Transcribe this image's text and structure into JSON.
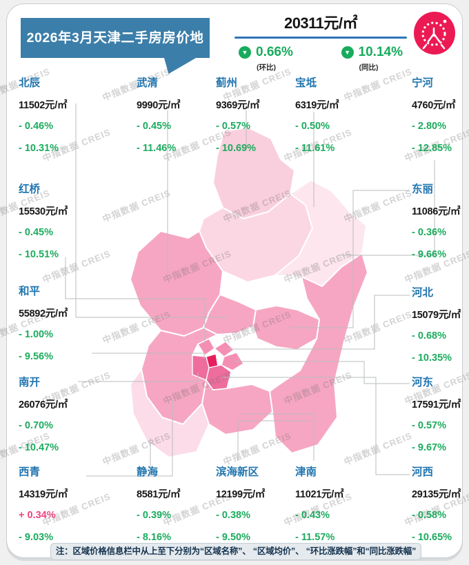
{
  "title": "2026年3月天津二手房房价地图",
  "summary": {
    "avg_price": "20311元/㎡",
    "mom": {
      "value": "0.66%",
      "label": "(环比)",
      "direction": "down"
    },
    "yoy": {
      "value": "10.14%",
      "label": "(同比)",
      "direction": "down"
    }
  },
  "watermark": {
    "text": "中指数据 CREIS"
  },
  "note": "注：区域价格信息栏中从上至下分别为“区域名称”、 “区域均价”、 “环比涨跌幅”和“同比涨跌幅”",
  "colors": {
    "banner_blue": "#3b7ea9",
    "accent_blue": "#2e75b6",
    "district_name_blue": "#2176b0",
    "green": "#17ab5c",
    "positive_pink": "#ea4580",
    "logo_pink": "#ec1a53",
    "map_deepest": "#e71e5e",
    "map_dark": "#ee6d9d",
    "map_medium_dark": "#f48fb3",
    "map_medium": "#f6a6c2",
    "map_light": "#f9cfdd",
    "map_lightest": "#fde6ee"
  },
  "districts": [
    {
      "name": "北辰",
      "price": "11502元/㎡",
      "mom": "- 0.46%",
      "yoy": "- 10.31%"
    },
    {
      "name": "武清",
      "price": "9990元/㎡",
      "mom": "- 0.45%",
      "yoy": "- 11.46%"
    },
    {
      "name": "蓟州",
      "price": "9369元/㎡",
      "mom": "- 0.57%",
      "yoy": "- 10.69%"
    },
    {
      "name": "宝坻",
      "price": "6319元/㎡",
      "mom": "- 0.50%",
      "yoy": "- 11.61%"
    },
    {
      "name": "宁河",
      "price": "4760元/㎡",
      "mom": "- 2.80%",
      "yoy": "- 12.85%"
    },
    {
      "name": "红桥",
      "price": "15530元/㎡",
      "mom": "- 0.45%",
      "yoy": "- 10.51%"
    },
    {
      "name": "东丽",
      "price": "11086元/㎡",
      "mom": "- 0.36%",
      "yoy": "- 9.66%"
    },
    {
      "name": "和平",
      "price": "55892元/㎡",
      "mom": "- 1.00%",
      "yoy": "- 9.56%"
    },
    {
      "name": "河北",
      "price": "15079元/㎡",
      "mom": "- 0.68%",
      "yoy": "- 10.35%"
    },
    {
      "name": "南开",
      "price": "26076元/㎡",
      "mom": "- 0.70%",
      "yoy": "- 10.47%"
    },
    {
      "name": "河东",
      "price": "17591元/㎡",
      "mom": "- 0.57%",
      "yoy": "- 9.67%"
    },
    {
      "name": "西青",
      "price": "14319元/㎡",
      "mom": "+ 0.34%",
      "yoy": "- 9.03%"
    },
    {
      "name": "静海",
      "price": "8581元/㎡",
      "mom": "- 0.39%",
      "yoy": "- 8.16%"
    },
    {
      "name": "滨海新区",
      "price": "12199元/㎡",
      "mom": "- 0.38%",
      "yoy": "- 9.50%"
    },
    {
      "name": "津南",
      "price": "11021元/㎡",
      "mom": "- 0.43%",
      "yoy": "- 11.57%"
    },
    {
      "name": "河西",
      "price": "29135元/㎡",
      "mom": "- 0.58%",
      "yoy": "- 10.65%"
    }
  ]
}
